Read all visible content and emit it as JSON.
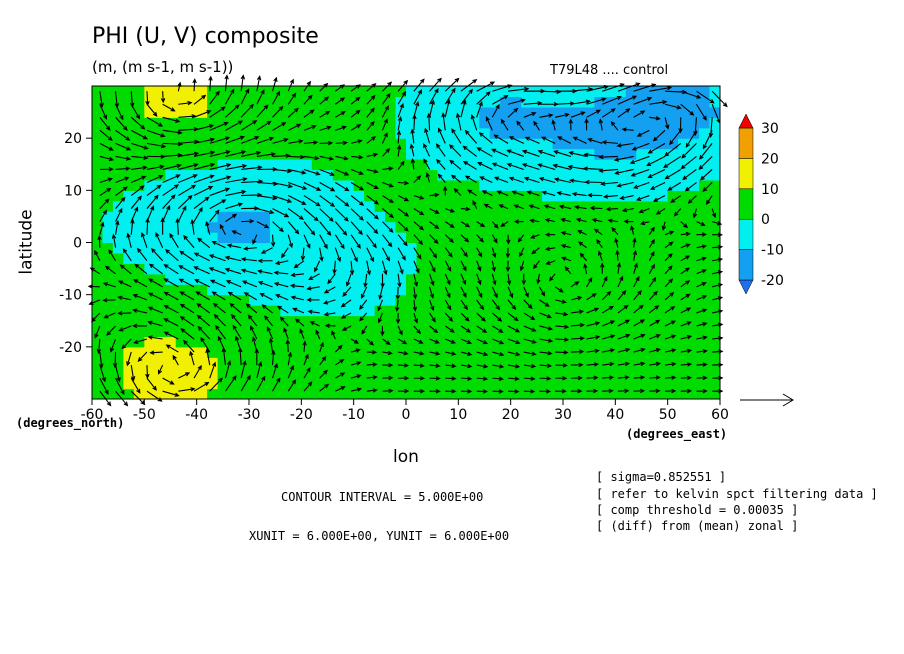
{
  "figure": {
    "title": "PHI (U, V) composite",
    "units": "(m, (m s-1, m s-1))",
    "run_id": "T79L48 .... control",
    "xlabel": "lon",
    "ylabel": "latitude",
    "x_unit_label": "(degrees_east)",
    "y_unit_label": "(degrees_north)",
    "contour_interval": "CONTOUR INTERVAL = 5.000E+00",
    "vector_units": "XUNIT = 6.000E+00, YUNIT = 6.000E+00",
    "notes": [
      "[ sigma=0.852551 ]",
      "[ refer to kelvin spct filtering data ]",
      "[ comp threshold = 0.00035 ]",
      "[ (diff) from (mean) zonal ]"
    ]
  },
  "chart_data": {
    "type": "heatmap",
    "overlay": "vector field (U, V)",
    "xlim": [
      -60,
      60
    ],
    "ylim": [
      -30,
      30
    ],
    "xticks": [
      -60,
      -50,
      -40,
      -30,
      -20,
      -10,
      0,
      10,
      20,
      30,
      40,
      50,
      60
    ],
    "xtick_labels": [
      "-60",
      "-50",
      "-40",
      "-30",
      "-20",
      "-10",
      "0",
      "10",
      "20",
      "30",
      "40",
      "50",
      "60"
    ],
    "yticks": [
      -20,
      -10,
      0,
      10,
      20
    ],
    "ytick_labels": [
      "-20",
      "-10",
      "0",
      "10",
      "20"
    ],
    "contour_interval": 5,
    "vector_reference": 6,
    "colorbar": {
      "levels": [
        -30,
        -20,
        -10,
        0,
        10,
        20,
        30,
        40
      ],
      "tick_values": [
        -20,
        -10,
        0,
        10,
        20,
        30
      ],
      "tick_labels": [
        "-20",
        "-10",
        "0",
        "10",
        "20",
        "30"
      ],
      "colors": [
        "#1e6ff0",
        "#14a0f0",
        "#00f0f0",
        "#00dc00",
        "#f0f000",
        "#f0a000",
        "#f00000"
      ]
    },
    "field_features": [
      {
        "lon": 18,
        "lat": 24,
        "value": -12
      },
      {
        "lon": 38,
        "lat": 20,
        "value": -10
      },
      {
        "lon": 52,
        "lat": 26,
        "value": -14
      },
      {
        "lon": -28,
        "lat": 5,
        "value": -8
      },
      {
        "lon": -40,
        "lat": 2,
        "value": -7
      },
      {
        "lon": -15,
        "lat": -4,
        "value": -6
      },
      {
        "lon": -44,
        "lat": -26,
        "value": 12
      },
      {
        "lon": -44,
        "lat": 28,
        "value": 11
      },
      {
        "lon": 30,
        "lat": -10,
        "value": 4
      },
      {
        "lon": -55,
        "lat": -16,
        "value": 4
      }
    ]
  }
}
